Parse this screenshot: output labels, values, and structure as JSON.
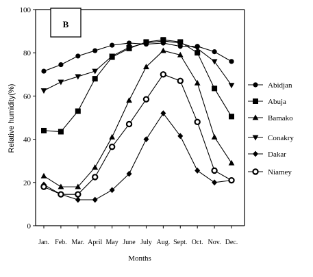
{
  "chart_data": {
    "type": "line",
    "panel_label": "B",
    "xlabel": "Months",
    "ylabel": "Relative humidity(%)",
    "ylim": [
      0,
      100
    ],
    "yticks": [
      0,
      20,
      40,
      60,
      80,
      100
    ],
    "categories": [
      "Jan.",
      "Feb.",
      "Mar.",
      "April",
      "May",
      "June",
      "July",
      "Aug.",
      "Sept.",
      "Oct.",
      "Nov.",
      "Dec."
    ],
    "grid": false,
    "legend_position": "right",
    "series": [
      {
        "name": "Abidjan",
        "marker": "circle",
        "values": [
          71.5,
          74.5,
          78.5,
          81,
          83.5,
          84.5,
          84,
          84.5,
          83,
          83,
          80.5,
          76
        ]
      },
      {
        "name": "Abuja",
        "marker": "square",
        "values": [
          44,
          43.5,
          53,
          68,
          78,
          82,
          85,
          86,
          85,
          80,
          63.5,
          50.5
        ]
      },
      {
        "name": "Bamako",
        "marker": "triangle-up",
        "values": [
          23,
          18,
          18,
          27,
          41,
          58,
          73.5,
          81,
          79,
          66,
          41,
          29
        ]
      },
      {
        "name": "Conakry",
        "marker": "triangle-down",
        "values": [
          62.5,
          66.5,
          69,
          71.5,
          78.5,
          82.5,
          84.5,
          85.5,
          84.5,
          82,
          76,
          65
        ]
      },
      {
        "name": "Dakar",
        "marker": "diamond",
        "values": [
          19,
          14.5,
          12,
          12,
          16.5,
          24,
          40,
          52,
          41.5,
          25.5,
          20,
          21
        ]
      },
      {
        "name": "Niamey",
        "marker": "ring",
        "values": [
          18,
          14.5,
          14.5,
          22.5,
          36.5,
          47,
          58.5,
          70,
          67,
          48,
          25.5,
          21
        ]
      }
    ]
  }
}
